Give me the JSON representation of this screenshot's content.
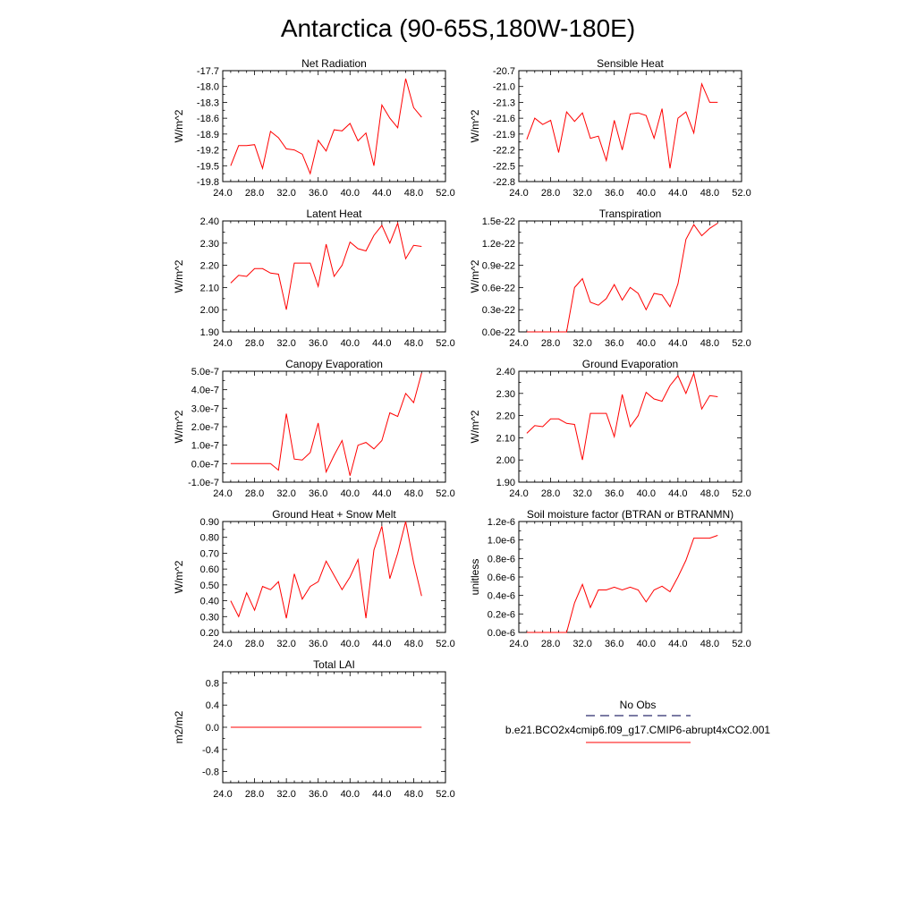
{
  "page": {
    "title": "Antarctica (90-65S,180W-180E)"
  },
  "legend": {
    "obs_label": "No Obs",
    "obs_color": "#2c2c6e",
    "model_label": "b.e21.BCO2x4cmip6.f09_g17.CMIP6-abrupt4xCO2.001",
    "model_color": "#ff0000"
  },
  "chart_data": [
    {
      "type": "line",
      "title": "Net Radiation",
      "ylabel": "W/m^2",
      "xlim": [
        24,
        52
      ],
      "ylim": [
        -19.8,
        -17.7
      ],
      "xticks": [
        "24.0",
        "28.0",
        "32.0",
        "36.0",
        "40.0",
        "44.0",
        "48.0",
        "52.0"
      ],
      "yticks": [
        "-17.7",
        "-18.0",
        "-18.3",
        "-18.6",
        "-18.9",
        "-19.2",
        "-19.5",
        "-19.8"
      ],
      "ytick_values": [
        -17.7,
        -18.0,
        -18.3,
        -18.6,
        -18.9,
        -19.2,
        -19.5,
        -19.8
      ],
      "series": [
        {
          "color": "#ff0000",
          "x": [
            25,
            26,
            27,
            28,
            29,
            30,
            31,
            32,
            33,
            34,
            35,
            36,
            37,
            38,
            39,
            40,
            41,
            42,
            43,
            44,
            45,
            46,
            47,
            48,
            49
          ],
          "y": [
            -19.5,
            -19.12,
            -19.12,
            -19.1,
            -19.55,
            -18.85,
            -18.97,
            -19.18,
            -19.2,
            -19.28,
            -19.65,
            -19.02,
            -19.22,
            -18.82,
            -18.84,
            -18.7,
            -19.03,
            -18.88,
            -19.5,
            -18.35,
            -18.6,
            -18.78,
            -17.85,
            -18.4,
            -18.58
          ]
        }
      ]
    },
    {
      "type": "line",
      "title": "Sensible Heat",
      "ylabel": "W/m^2",
      "xlim": [
        24,
        52
      ],
      "ylim": [
        -22.8,
        -20.7
      ],
      "xticks": [
        "24.0",
        "28.0",
        "32.0",
        "36.0",
        "40.0",
        "44.0",
        "48.0",
        "52.0"
      ],
      "yticks": [
        "-20.7",
        "-21.0",
        "-21.3",
        "-21.6",
        "-21.9",
        "-22.2",
        "-22.5",
        "-22.8"
      ],
      "ytick_values": [
        -20.7,
        -21.0,
        -21.3,
        -21.6,
        -21.9,
        -22.2,
        -22.5,
        -22.8
      ],
      "series": [
        {
          "color": "#ff0000",
          "x": [
            25,
            26,
            27,
            28,
            29,
            30,
            31,
            32,
            33,
            34,
            35,
            36,
            37,
            38,
            39,
            40,
            41,
            42,
            43,
            44,
            45,
            46,
            47,
            48,
            49
          ],
          "y": [
            -22.0,
            -21.6,
            -21.72,
            -21.64,
            -22.25,
            -21.48,
            -21.66,
            -21.5,
            -21.98,
            -21.94,
            -22.4,
            -21.64,
            -22.2,
            -21.52,
            -21.5,
            -21.55,
            -21.98,
            -21.42,
            -22.55,
            -21.6,
            -21.48,
            -21.88,
            -20.95,
            -21.3,
            -21.3
          ]
        }
      ]
    },
    {
      "type": "line",
      "title": "Latent Heat",
      "ylabel": "W/m^2",
      "xlim": [
        24,
        52
      ],
      "ylim": [
        1.9,
        2.4
      ],
      "xticks": [
        "24.0",
        "28.0",
        "32.0",
        "36.0",
        "40.0",
        "44.0",
        "48.0",
        "52.0"
      ],
      "yticks": [
        "2.40",
        "2.30",
        "2.20",
        "2.10",
        "2.00",
        "1.90"
      ],
      "ytick_values": [
        2.4,
        2.3,
        2.2,
        2.1,
        2.0,
        1.9
      ],
      "series": [
        {
          "color": "#ff0000",
          "x": [
            25,
            26,
            27,
            28,
            29,
            30,
            31,
            32,
            33,
            34,
            35,
            36,
            37,
            38,
            39,
            40,
            41,
            42,
            43,
            44,
            45,
            46,
            47,
            48,
            49
          ],
          "y": [
            2.12,
            2.155,
            2.15,
            2.185,
            2.185,
            2.165,
            2.16,
            2.0,
            2.21,
            2.21,
            2.21,
            2.105,
            2.295,
            2.15,
            2.2,
            2.305,
            2.275,
            2.265,
            2.335,
            2.38,
            2.3,
            2.39,
            2.23,
            2.29,
            2.285
          ]
        }
      ]
    },
    {
      "type": "line",
      "title": "Transpiration",
      "ylabel": "W/m^2",
      "xlim": [
        24,
        52
      ],
      "ylim": [
        0.0,
        1.5
      ],
      "xticks": [
        "24.0",
        "28.0",
        "32.0",
        "36.0",
        "40.0",
        "44.0",
        "48.0",
        "52.0"
      ],
      "yticks": [
        "1.5e-22",
        "1.2e-22",
        "0.9e-22",
        "0.6e-22",
        "0.3e-22",
        "0.0e-22"
      ],
      "ytick_values": [
        1.5,
        1.2,
        0.9,
        0.6,
        0.3,
        0.0
      ],
      "series": [
        {
          "color": "#ff0000",
          "x": [
            25,
            26,
            27,
            28,
            29,
            30,
            31,
            32,
            33,
            34,
            35,
            36,
            37,
            38,
            39,
            40,
            41,
            42,
            43,
            44,
            45,
            46,
            47,
            48,
            49
          ],
          "y": [
            0,
            0,
            0,
            0,
            0,
            0,
            0.6,
            0.72,
            0.4,
            0.36,
            0.45,
            0.64,
            0.43,
            0.6,
            0.52,
            0.3,
            0.52,
            0.5,
            0.34,
            0.65,
            1.25,
            1.45,
            1.3,
            1.4,
            1.47
          ]
        }
      ]
    },
    {
      "type": "line",
      "title": "Canopy Evaporation",
      "ylabel": "W/m^2",
      "xlim": [
        24,
        52
      ],
      "ylim": [
        -1.0,
        5.0
      ],
      "xticks": [
        "24.0",
        "28.0",
        "32.0",
        "36.0",
        "40.0",
        "44.0",
        "48.0",
        "52.0"
      ],
      "yticks": [
        "5.0e-7",
        "4.0e-7",
        "3.0e-7",
        "2.0e-7",
        "1.0e-7",
        "0.0e-7",
        "-1.0e-7"
      ],
      "ytick_values": [
        5,
        4,
        3,
        2,
        1,
        0,
        -1
      ],
      "series": [
        {
          "color": "#ff0000",
          "x": [
            25,
            26,
            27,
            28,
            29,
            30,
            31,
            32,
            33,
            34,
            35,
            36,
            37,
            38,
            39,
            40,
            41,
            42,
            43,
            44,
            45,
            46,
            47,
            48,
            49
          ],
          "y": [
            0,
            0,
            0,
            0,
            0,
            0,
            -0.35,
            2.7,
            0.25,
            0.2,
            0.6,
            2.2,
            -0.45,
            0.45,
            1.25,
            -0.65,
            1.0,
            1.15,
            0.8,
            1.25,
            2.75,
            2.55,
            3.8,
            3.3,
            4.9
          ]
        }
      ]
    },
    {
      "type": "line",
      "title": "Ground Evaporation",
      "ylabel": "W/m^2",
      "xlim": [
        24,
        52
      ],
      "ylim": [
        1.9,
        2.4
      ],
      "xticks": [
        "24.0",
        "28.0",
        "32.0",
        "36.0",
        "40.0",
        "44.0",
        "48.0",
        "52.0"
      ],
      "yticks": [
        "2.40",
        "2.30",
        "2.20",
        "2.10",
        "2.00",
        "1.90"
      ],
      "ytick_values": [
        2.4,
        2.3,
        2.2,
        2.1,
        2.0,
        1.9
      ],
      "series": [
        {
          "color": "#ff0000",
          "x": [
            25,
            26,
            27,
            28,
            29,
            30,
            31,
            32,
            33,
            34,
            35,
            36,
            37,
            38,
            39,
            40,
            41,
            42,
            43,
            44,
            45,
            46,
            47,
            48,
            49
          ],
          "y": [
            2.12,
            2.155,
            2.15,
            2.185,
            2.185,
            2.165,
            2.16,
            2.0,
            2.21,
            2.21,
            2.21,
            2.105,
            2.295,
            2.15,
            2.2,
            2.305,
            2.275,
            2.265,
            2.335,
            2.38,
            2.3,
            2.39,
            2.23,
            2.29,
            2.285
          ]
        }
      ]
    },
    {
      "type": "line",
      "title": "Ground Heat + Snow Melt",
      "ylabel": "W/m^2",
      "xlim": [
        24,
        52
      ],
      "ylim": [
        0.2,
        0.9
      ],
      "xticks": [
        "24.0",
        "28.0",
        "32.0",
        "36.0",
        "40.0",
        "44.0",
        "48.0",
        "52.0"
      ],
      "yticks": [
        "0.90",
        "0.80",
        "0.70",
        "0.60",
        "0.50",
        "0.40",
        "0.30",
        "0.20"
      ],
      "ytick_values": [
        0.9,
        0.8,
        0.7,
        0.6,
        0.5,
        0.4,
        0.3,
        0.2
      ],
      "series": [
        {
          "color": "#ff0000",
          "x": [
            25,
            26,
            27,
            28,
            29,
            30,
            31,
            32,
            33,
            34,
            35,
            36,
            37,
            38,
            39,
            40,
            41,
            42,
            43,
            44,
            45,
            46,
            47,
            48,
            49
          ],
          "y": [
            0.4,
            0.3,
            0.45,
            0.34,
            0.49,
            0.47,
            0.52,
            0.29,
            0.57,
            0.41,
            0.49,
            0.52,
            0.65,
            0.56,
            0.47,
            0.55,
            0.66,
            0.29,
            0.72,
            0.87,
            0.54,
            0.7,
            0.9,
            0.64,
            0.43
          ]
        }
      ]
    },
    {
      "type": "line",
      "title": "Soil moisture factor (BTRAN or BTRANMN)",
      "ylabel": "unitless",
      "xlim": [
        24,
        52
      ],
      "ylim": [
        0.0,
        1.2
      ],
      "xticks": [
        "24.0",
        "28.0",
        "32.0",
        "36.0",
        "40.0",
        "44.0",
        "48.0",
        "52.0"
      ],
      "yticks": [
        "1.2e-6",
        "1.0e-6",
        "0.8e-6",
        "0.6e-6",
        "0.4e-6",
        "0.2e-6",
        "0.0e-6"
      ],
      "ytick_values": [
        1.2,
        1.0,
        0.8,
        0.6,
        0.4,
        0.2,
        0.0
      ],
      "series": [
        {
          "color": "#ff0000",
          "x": [
            25,
            26,
            27,
            28,
            29,
            30,
            31,
            32,
            33,
            34,
            35,
            36,
            37,
            38,
            39,
            40,
            41,
            42,
            43,
            44,
            45,
            46,
            47,
            48,
            49
          ],
          "y": [
            0,
            0,
            0,
            0,
            0,
            0,
            0.32,
            0.52,
            0.27,
            0.46,
            0.46,
            0.49,
            0.46,
            0.49,
            0.46,
            0.33,
            0.46,
            0.5,
            0.44,
            0.6,
            0.78,
            1.02,
            1.02,
            1.02,
            1.05
          ]
        }
      ]
    },
    {
      "type": "line",
      "title": "Total LAI",
      "ylabel": "m2/m2",
      "xlim": [
        24,
        52
      ],
      "ylim": [
        -1.0,
        1.0
      ],
      "xticks": [
        "24.0",
        "28.0",
        "32.0",
        "36.0",
        "40.0",
        "44.0",
        "48.0",
        "52.0"
      ],
      "yticks": [
        "0.8",
        "0.4",
        "0.0",
        "-0.4",
        "-0.8"
      ],
      "ytick_values": [
        0.8,
        0.4,
        0.0,
        -0.4,
        -0.8
      ],
      "series": [
        {
          "color": "#ff0000",
          "x": [
            25,
            49
          ],
          "y": [
            0,
            0
          ]
        }
      ]
    }
  ]
}
